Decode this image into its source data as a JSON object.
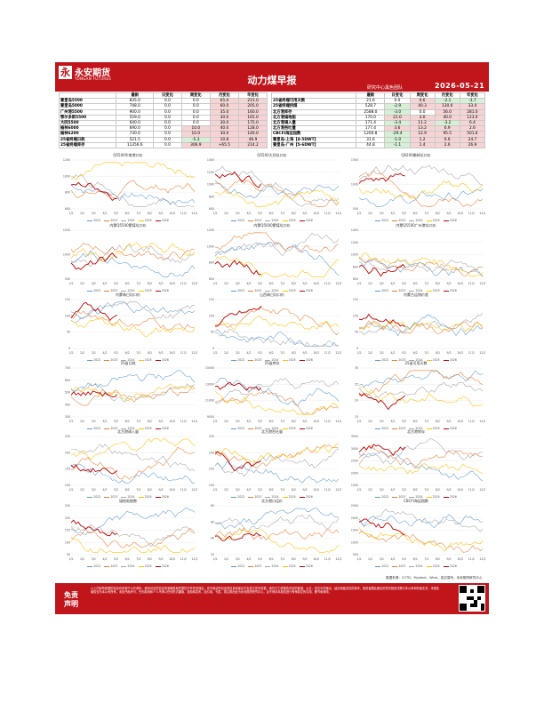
{
  "header": {
    "logo_char": "永",
    "brand": "永安期货",
    "brand_en": "YONGAN FUTURES",
    "title": "动力煤早报",
    "dept": "研究中心黑色团队",
    "date": "2026-05-21"
  },
  "table_left": {
    "headers": [
      "",
      "最新",
      "日变化",
      "周变化",
      "月变化",
      "年变化"
    ],
    "rows": [
      {
        "label": "秦皇岛5500",
        "values": [
          "835.0",
          "0.0",
          "0.0",
          "65.0",
          "215.0"
        ],
        "flags": [
          "",
          "",
          "",
          "pos",
          "pos"
        ]
      },
      {
        "label": "秦皇岛5000",
        "values": [
          "748.0",
          "0.0",
          "0.0",
          "60.0",
          "205.0"
        ],
        "flags": [
          "",
          "",
          "",
          "pos",
          "pos"
        ]
      },
      {
        "label": "广州港5500",
        "values": [
          "900.0",
          "0.0",
          "0.0",
          "35.0",
          "160.0"
        ],
        "flags": [
          "",
          "",
          "",
          "pos",
          "pos"
        ]
      },
      {
        "label": "鄂尔多斯5500",
        "values": [
          "559.0",
          "0.0",
          "0.0",
          "30.0",
          "165.0"
        ],
        "flags": [
          "",
          "",
          "",
          "pos",
          "pos"
        ]
      },
      {
        "label": "大同5500",
        "values": [
          "640.0",
          "0.0",
          "0.0",
          "30.0",
          "175.0"
        ],
        "flags": [
          "",
          "",
          "",
          "pos",
          "pos"
        ]
      },
      {
        "label": "榆林6000",
        "values": [
          "690.0",
          "0.0",
          "10.0",
          "40.0",
          "128.0"
        ],
        "flags": [
          "",
          "",
          "pos",
          "pos",
          "pos"
        ]
      },
      {
        "label": "榆林6200",
        "values": [
          "730.0",
          "0.0",
          "10.0",
          "30.0",
          "140.0"
        ],
        "flags": [
          "",
          "",
          "pos",
          "pos",
          "pos"
        ]
      },
      {
        "label": "25省终端日耗",
        "values": [
          "521.5",
          "0.0",
          "-5.3",
          "10.8",
          "46.9"
        ],
        "flags": [
          "",
          "",
          "neg",
          "pos",
          "pos"
        ]
      },
      {
        "label": "25省终端库存",
        "values": [
          "11356.6",
          "0.0",
          "306.9",
          "+65.5",
          "214.2"
        ],
        "flags": [
          "",
          "",
          "pos",
          "pos",
          "pos"
        ]
      }
    ]
  },
  "table_right": {
    "headers": [
      "",
      "最新",
      "日变化",
      "周变化",
      "月变化",
      "年变化"
    ],
    "rows": [
      {
        "label": "25省终端可用天数",
        "values": [
          "21.6",
          "0.0",
          "0.6",
          "-2.1",
          "-3.7"
        ],
        "flags": [
          "",
          "",
          "pos",
          "neg",
          "neg"
        ]
      },
      {
        "label": "25省终端供煤",
        "values": [
          "528.7",
          "-2.9",
          "40.3",
          "130.0",
          "33.4"
        ],
        "flags": [
          "",
          "neg",
          "pos",
          "pos",
          "pos"
        ]
      },
      {
        "label": "北方港库存",
        "values": [
          "2588.0",
          "-3.0",
          "0.0",
          "56.0",
          "281.0"
        ],
        "flags": [
          "",
          "neg",
          "",
          "pos",
          "pos"
        ]
      },
      {
        "label": "北方港锚地船",
        "values": [
          "170.0",
          "21.0",
          "3.0",
          "40.0",
          "123.0"
        ],
        "flags": [
          "",
          "pos",
          "pos",
          "pos",
          "pos"
        ]
      },
      {
        "label": "北方港调入量",
        "values": [
          "171.4",
          "-3.4",
          "11.2",
          "-3.2",
          "6.4"
        ],
        "flags": [
          "",
          "neg",
          "pos",
          "neg",
          "pos"
        ]
      },
      {
        "label": "北方港吞吐量",
        "values": [
          "177.4",
          "3.6",
          "13.2",
          "6.9",
          "2.6"
        ],
        "flags": [
          "",
          "pos",
          "pos",
          "pos",
          "pos"
        ]
      },
      {
        "label": "CBCFI海运指数",
        "values": [
          "1200.8",
          "-29.4",
          "12.9",
          "95.5",
          "501.6"
        ],
        "flags": [
          "",
          "neg",
          "pos",
          "pos",
          "pos"
        ]
      },
      {
        "label": "秦皇岛-上海【4-5DWT】",
        "values": [
          "31.6",
          "-1.0",
          "1.2",
          "6.6",
          "24.7"
        ],
        "flags": [
          "",
          "neg",
          "pos",
          "pos",
          "pos"
        ]
      },
      {
        "label": "秦皇岛-广州【5-6DWT】",
        "values": [
          "44.8",
          "-1.1",
          "1.4",
          "2.6",
          "26.9"
        ],
        "flags": [
          "",
          "neg",
          "pos",
          "pos",
          "pos"
        ]
      }
    ]
  },
  "colors": {
    "brand_red": "#c0151b",
    "y2022": "#5b9bd5",
    "y2023": "#ed7d31",
    "y2024": "#a5a5a5",
    "y2025": "#ffc000",
    "y2026": "#c00000"
  },
  "legend": [
    "2022",
    "2023",
    "2024",
    "2025",
    "2026"
  ],
  "charts": [
    {
      "title": "Q5500华南港口价",
      "yticks": [
        "1200",
        "1000",
        "800",
        "600"
      ]
    },
    {
      "title": "Q5500大同坑口价",
      "yticks": [
        "1400",
        "1200",
        "1000",
        "800",
        "600"
      ]
    },
    {
      "title": "Q6200榆林坑口价",
      "yticks": [
        "1500",
        "1000",
        "500"
      ]
    },
    {
      "title": "内蒙Q5500蒙煤坑口价",
      "yticks": [
        "1500",
        "1000",
        "500"
      ]
    },
    {
      "title": "内蒙Q5000蒙煤坑口价",
      "yticks": [
        "1200",
        "1000",
        "800",
        "600"
      ]
    },
    {
      "title": "内蒙Q5500广州港坑口价",
      "yticks": [
        "1400",
        "1200",
        "1000",
        "800",
        "600"
      ]
    },
    {
      "title": "内蒙每日坑口价",
      "yticks": [
        "150",
        "100",
        "50",
        "0"
      ]
    },
    {
      "title": "山西每日坑口价",
      "yticks": [
        "150",
        "100",
        "50",
        "0"
      ]
    },
    {
      "title": "内蒙古运销价差",
      "yticks": [
        "150",
        "100",
        "50",
        "0"
      ]
    },
    {
      "title": "25省日耗",
      "yticks": [
        "700",
        "600",
        "500",
        "400",
        "300"
      ]
    },
    {
      "title": "25省库存",
      "yticks": [
        "15000",
        "13000",
        "11000",
        "9000"
      ]
    },
    {
      "title": "25省可用天数",
      "yticks": [
        "30",
        "25",
        "20",
        "15"
      ]
    },
    {
      "title": "北方港调入量",
      "yticks": [
        "250",
        "200",
        "150",
        "100"
      ]
    },
    {
      "title": "北方港吞吐量",
      "yticks": [
        "250",
        "200",
        "150",
        "100"
      ]
    },
    {
      "title": "北方港库存",
      "yticks": [
        "3500",
        "3000",
        "2500",
        "2000",
        "1500"
      ]
    },
    {
      "title": "锚地船舶数",
      "yticks": [
        "250",
        "200",
        "150",
        "100",
        "50"
      ]
    },
    {
      "title": "北方港口运价",
      "yticks": [
        "80",
        "60",
        "40",
        "20"
      ]
    },
    {
      "title": "CBCFI海运指数",
      "yticks": [
        "2500",
        "2000",
        "1500",
        "1000",
        "500"
      ]
    }
  ],
  "xticks": [
    "1/2",
    "2/2",
    "3/2",
    "4/2",
    "5/2",
    "6/2",
    "7/2",
    "8/2",
    "9/2",
    "10/2",
    "11/2",
    "12/2"
  ],
  "source": "数据来源：CCTD、Mysteel、Wind、各交易所、永安期货研究中心",
  "disclaimer": {
    "title": "免责声明",
    "body": "以上内容所依据的信息均来源于公开资料，我司对这些信息的准确性和完整性不作任何保证，也不保证所包含的信息和建议不会发生任何变更。我们已力求报告内容的客观、公正，但文中的观点、结论和建议仅供参考，投资者据此做出的任何投资决策与本公司和作者无关。本报告版权仅为本公司所有，未经书面许可，任何机构和个人不得以任何形式翻版、复制和发布。如引用、刊发，需注明出处为永安期货研究中心，且不得对本报告进行有悖原意的引用、删节和修改。"
  }
}
